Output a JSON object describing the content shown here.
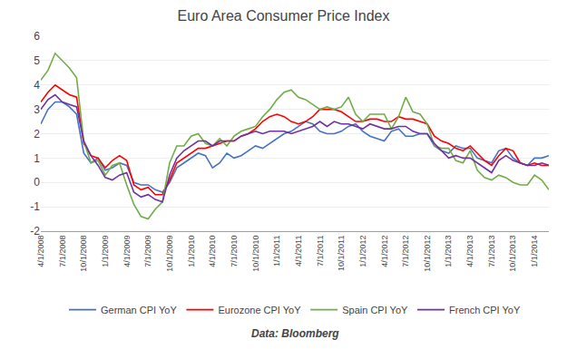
{
  "chart_data": {
    "type": "line",
    "title": "Euro Area Consumer Price Index",
    "annotations": [
      "Data: Bloomberg"
    ],
    "categories": [
      "4/1/2008",
      null,
      null,
      "7/1/2008",
      null,
      null,
      "10/1/2008",
      null,
      null,
      "1/1/2009",
      null,
      null,
      "4/1/2009",
      null,
      null,
      "7/1/2009",
      null,
      null,
      "10/1/2009",
      null,
      null,
      "1/1/2010",
      null,
      null,
      "4/1/2010",
      null,
      null,
      "7/1/2010",
      null,
      null,
      "10/1/2010",
      null,
      null,
      "1/1/2011",
      null,
      null,
      "4/1/2011",
      null,
      null,
      "7/1/2011",
      null,
      null,
      "10/1/2011",
      null,
      null,
      "1/1/2012",
      null,
      null,
      "4/1/2012",
      null,
      null,
      "7/1/2012",
      null,
      null,
      "10/1/2012",
      null,
      null,
      "1/1/2013",
      null,
      null,
      "4/1/2013",
      null,
      null,
      "7/1/2013",
      null,
      null,
      "10/1/2013",
      null,
      null,
      "1/1/2014",
      null,
      null
    ],
    "series": [
      {
        "name": "German CPI YoY",
        "color": "#4472C4",
        "values": [
          2.4,
          3.0,
          3.3,
          3.3,
          3.1,
          2.8,
          1.2,
          0.8,
          1.0,
          0.5,
          0.6,
          0.8,
          0.7,
          0.0,
          -0.1,
          -0.1,
          -0.3,
          -0.4,
          0.0,
          0.6,
          0.8,
          1.0,
          1.2,
          1.1,
          0.6,
          0.8,
          1.2,
          1.0,
          1.1,
          1.3,
          1.5,
          1.4,
          1.6,
          1.8,
          2.0,
          2.1,
          2.3,
          2.5,
          2.4,
          2.1,
          2.0,
          2.0,
          2.1,
          2.3,
          2.4,
          2.1,
          1.9,
          1.8,
          1.7,
          2.1,
          2.2,
          1.9,
          1.9,
          2.0,
          2.0,
          1.5,
          1.3,
          1.2,
          1.5,
          1.4,
          1.4,
          1.0,
          0.9,
          0.8,
          1.3,
          1.4,
          1.0,
          0.8,
          0.7,
          1.0,
          1.0,
          1.1
        ]
      },
      {
        "name": "Eurozone CPI YoY",
        "color": "#FF0000",
        "values": [
          3.3,
          3.7,
          4.0,
          3.8,
          3.6,
          3.5,
          1.6,
          1.1,
          1.0,
          0.6,
          0.9,
          1.1,
          0.9,
          -0.1,
          -0.3,
          -0.2,
          -0.5,
          -0.5,
          0.1,
          0.8,
          1.0,
          1.2,
          1.4,
          1.4,
          1.5,
          1.6,
          1.7,
          1.7,
          1.9,
          2.0,
          2.2,
          2.5,
          2.7,
          2.8,
          2.7,
          2.5,
          2.4,
          2.5,
          2.7,
          3.0,
          3.0,
          3.0,
          2.9,
          2.7,
          2.5,
          2.5,
          2.6,
          2.6,
          2.5,
          2.5,
          2.7,
          2.6,
          2.6,
          2.5,
          2.4,
          1.9,
          1.7,
          1.6,
          1.4,
          1.3,
          1.5,
          1.2,
          0.9,
          0.7,
          1.1,
          1.4,
          1.3,
          0.8,
          0.7,
          0.8,
          0.7,
          0.7
        ]
      },
      {
        "name": "Spain CPI YoY",
        "color": "#70AD47",
        "values": [
          4.2,
          4.6,
          5.3,
          5.0,
          4.7,
          4.3,
          1.7,
          0.8,
          0.9,
          0.3,
          0.7,
          0.8,
          -0.1,
          -0.9,
          -1.4,
          -1.5,
          -1.1,
          -0.8,
          0.8,
          1.5,
          1.5,
          1.9,
          2.0,
          1.6,
          1.5,
          1.8,
          1.5,
          1.9,
          2.1,
          2.2,
          2.3,
          2.7,
          3.0,
          3.4,
          3.7,
          3.8,
          3.5,
          3.4,
          3.2,
          3.0,
          3.1,
          3.0,
          3.1,
          3.5,
          2.8,
          2.5,
          2.8,
          2.8,
          2.8,
          2.2,
          2.7,
          3.5,
          2.9,
          2.8,
          2.4,
          1.5,
          1.4,
          1.4,
          0.9,
          0.8,
          1.3,
          0.5,
          0.2,
          0.1,
          0.3,
          0.2,
          0.0,
          -0.1,
          -0.1,
          0.3,
          0.1,
          -0.3
        ]
      },
      {
        "name": "French CPI YoY",
        "color": "#7030A0",
        "values": [
          3.0,
          3.4,
          3.6,
          3.3,
          3.2,
          3.1,
          1.7,
          1.1,
          0.7,
          0.2,
          0.1,
          0.3,
          0.4,
          -0.4,
          -0.6,
          -0.5,
          -0.7,
          -0.8,
          0.3,
          1.0,
          1.3,
          1.5,
          1.7,
          1.7,
          1.5,
          1.7,
          1.7,
          1.7,
          1.9,
          2.0,
          2.1,
          2.0,
          2.1,
          2.1,
          2.1,
          2.0,
          2.1,
          2.2,
          2.3,
          2.5,
          2.3,
          2.5,
          2.4,
          2.4,
          2.3,
          2.2,
          2.4,
          2.3,
          2.2,
          2.2,
          2.3,
          2.3,
          2.1,
          2.0,
          2.0,
          1.6,
          1.3,
          1.0,
          1.1,
          1.0,
          1.0,
          0.8,
          0.6,
          0.4,
          0.9,
          1.1,
          0.9,
          0.8,
          0.7,
          0.7,
          0.8,
          0.7
        ]
      }
    ],
    "ylim": [
      -2,
      6
    ],
    "yticks": [
      -2,
      -1,
      0,
      1,
      2,
      3,
      4,
      5,
      6
    ],
    "grid": true,
    "legend": "bottom"
  }
}
